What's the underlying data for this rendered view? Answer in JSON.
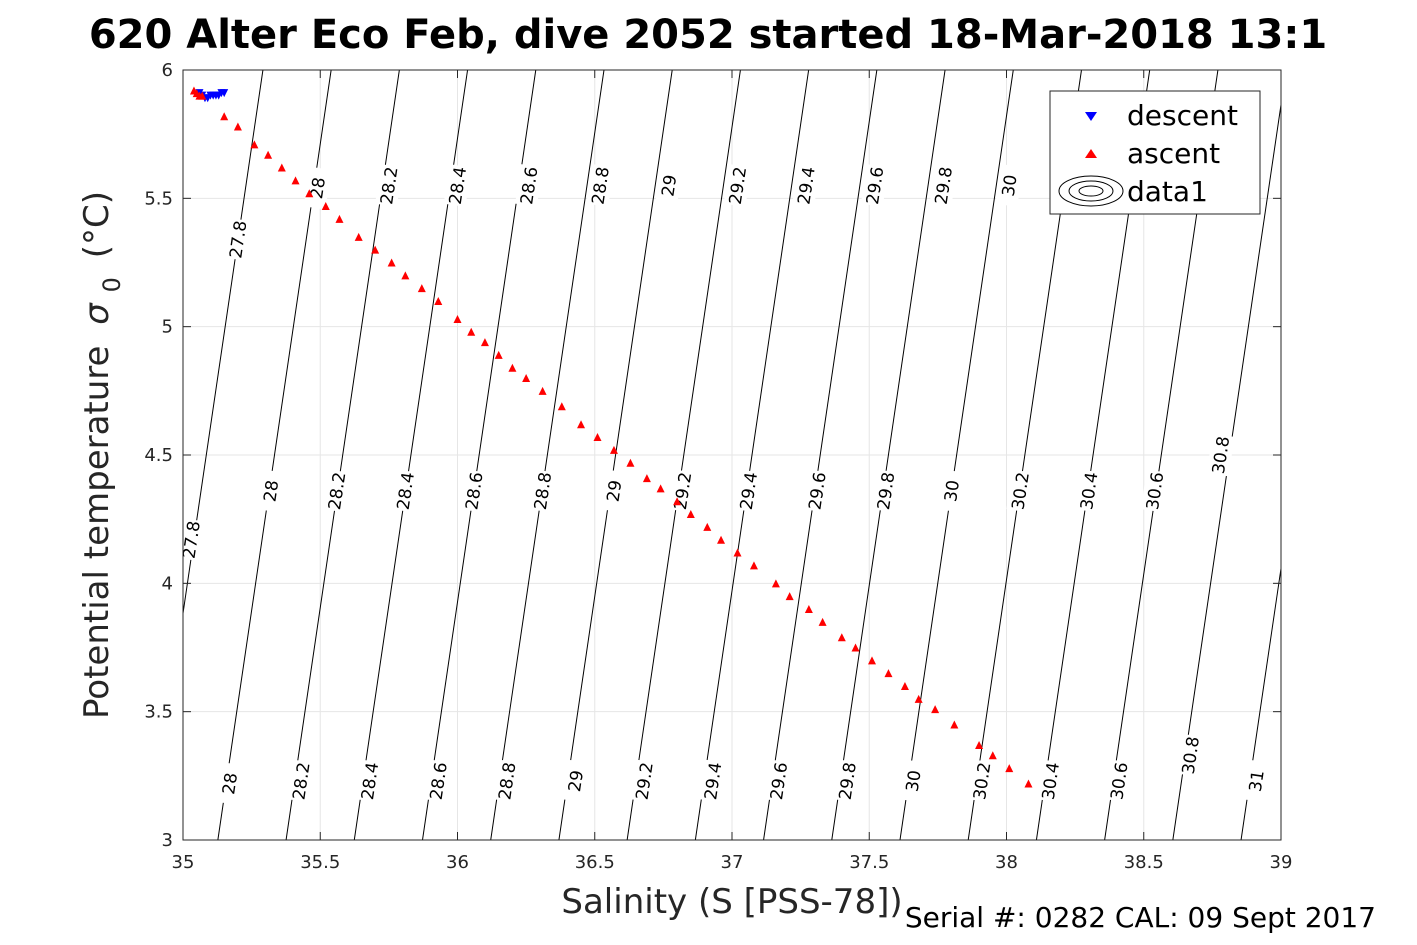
{
  "title": "620 Alter Eco Feb, dive 2052 started 18-Mar-2018 13:1",
  "footer": "Serial #: 0282  CAL: 09 Sept 2017",
  "chart_data": {
    "type": "scatter",
    "xlabel": "Salinity (S [PSS-78])",
    "ylabel": "Potential temperature",
    "ylabel_symbol": "σ",
    "ylabel_subscript": "0",
    "ylabel_unit": "(°C)",
    "xlim": [
      35,
      39
    ],
    "ylim": [
      3,
      6
    ],
    "xticks": [
      35,
      35.5,
      36,
      36.5,
      37,
      37.5,
      38,
      38.5,
      39
    ],
    "yticks": [
      3,
      3.5,
      4,
      4.5,
      5,
      5.5,
      6
    ],
    "xtick_labels": [
      "35",
      "35.5",
      "36",
      "36.5",
      "37",
      "37.5",
      "38",
      "38.5",
      "39"
    ],
    "ytick_labels": [
      "3",
      "3.5",
      "4",
      "4.5",
      "5",
      "5.5",
      "6"
    ],
    "grid": true,
    "legend": {
      "placement": "top-right",
      "entries": [
        "descent",
        "ascent",
        "data1"
      ]
    },
    "series": [
      {
        "name": "descent",
        "marker": "triangle-down",
        "color": "#0000ff",
        "points": [
          [
            35.06,
            5.91
          ],
          [
            35.07,
            5.9
          ],
          [
            35.08,
            5.89
          ],
          [
            35.09,
            5.89
          ],
          [
            35.1,
            5.9
          ],
          [
            35.11,
            5.9
          ],
          [
            35.12,
            5.9
          ],
          [
            35.13,
            5.9
          ],
          [
            35.14,
            5.91
          ],
          [
            35.15,
            5.91
          ]
        ]
      },
      {
        "name": "ascent",
        "marker": "triangle-up",
        "color": "#ff0000",
        "points": [
          [
            35.04,
            5.92
          ],
          [
            35.05,
            5.91
          ],
          [
            35.06,
            5.9
          ],
          [
            35.07,
            5.9
          ],
          [
            35.15,
            5.82
          ],
          [
            35.2,
            5.78
          ],
          [
            35.26,
            5.71
          ],
          [
            35.31,
            5.67
          ],
          [
            35.36,
            5.62
          ],
          [
            35.41,
            5.57
          ],
          [
            35.46,
            5.52
          ],
          [
            35.52,
            5.47
          ],
          [
            35.57,
            5.42
          ],
          [
            35.64,
            5.35
          ],
          [
            35.7,
            5.3
          ],
          [
            35.76,
            5.25
          ],
          [
            35.81,
            5.2
          ],
          [
            35.87,
            5.15
          ],
          [
            35.93,
            5.1
          ],
          [
            36.0,
            5.03
          ],
          [
            36.05,
            4.98
          ],
          [
            36.1,
            4.94
          ],
          [
            36.15,
            4.89
          ],
          [
            36.2,
            4.84
          ],
          [
            36.25,
            4.8
          ],
          [
            36.31,
            4.75
          ],
          [
            36.38,
            4.69
          ],
          [
            36.45,
            4.62
          ],
          [
            36.51,
            4.57
          ],
          [
            36.57,
            4.52
          ],
          [
            36.63,
            4.47
          ],
          [
            36.69,
            4.41
          ],
          [
            36.74,
            4.37
          ],
          [
            36.8,
            4.32
          ],
          [
            36.85,
            4.27
          ],
          [
            36.91,
            4.22
          ],
          [
            36.96,
            4.17
          ],
          [
            37.02,
            4.12
          ],
          [
            37.08,
            4.07
          ],
          [
            37.16,
            4.0
          ],
          [
            37.21,
            3.95
          ],
          [
            37.28,
            3.9
          ],
          [
            37.33,
            3.85
          ],
          [
            37.4,
            3.79
          ],
          [
            37.45,
            3.75
          ],
          [
            37.51,
            3.7
          ],
          [
            37.57,
            3.65
          ],
          [
            37.63,
            3.6
          ],
          [
            37.68,
            3.55
          ],
          [
            37.74,
            3.51
          ],
          [
            37.81,
            3.45
          ],
          [
            37.9,
            3.37
          ],
          [
            37.95,
            3.33
          ],
          [
            38.01,
            3.28
          ],
          [
            38.08,
            3.22
          ]
        ]
      }
    ],
    "contours": {
      "name": "data1",
      "color": "#000000",
      "levels": [
        27.8,
        28,
        28.2,
        28.4,
        28.6,
        28.8,
        29,
        29.2,
        29.4,
        29.6,
        29.8,
        30,
        30.2,
        30.4,
        30.6,
        30.8,
        31
      ],
      "labels": [
        {
          "level": "27.8",
          "x": 35.2,
          "y": 5.34
        },
        {
          "level": "28",
          "x": 35.49,
          "y": 5.54
        },
        {
          "level": "28.2",
          "x": 35.75,
          "y": 5.55
        },
        {
          "level": "28.4",
          "x": 36.0,
          "y": 5.55
        },
        {
          "level": "28.6",
          "x": 36.26,
          "y": 5.55
        },
        {
          "level": "28.8",
          "x": 36.52,
          "y": 5.55
        },
        {
          "level": "29",
          "x": 36.77,
          "y": 5.55
        },
        {
          "level": "29.2",
          "x": 37.02,
          "y": 5.55
        },
        {
          "level": "29.4",
          "x": 37.27,
          "y": 5.55
        },
        {
          "level": "29.6",
          "x": 37.52,
          "y": 5.55
        },
        {
          "level": "29.8",
          "x": 37.77,
          "y": 5.55
        },
        {
          "level": "30",
          "x": 38.01,
          "y": 5.55
        },
        {
          "level": "27.8",
          "x": 35.03,
          "y": 4.17
        },
        {
          "level": "28",
          "x": 35.32,
          "y": 4.36
        },
        {
          "level": "28.2",
          "x": 35.56,
          "y": 4.36
        },
        {
          "level": "28.4",
          "x": 35.81,
          "y": 4.36
        },
        {
          "level": "28.6",
          "x": 36.06,
          "y": 4.36
        },
        {
          "level": "28.8",
          "x": 36.31,
          "y": 4.36
        },
        {
          "level": "29",
          "x": 36.57,
          "y": 4.36
        },
        {
          "level": "29.2",
          "x": 36.82,
          "y": 4.36
        },
        {
          "level": "29.4",
          "x": 37.06,
          "y": 4.36
        },
        {
          "level": "29.6",
          "x": 37.31,
          "y": 4.36
        },
        {
          "level": "29.8",
          "x": 37.56,
          "y": 4.36
        },
        {
          "level": "30",
          "x": 37.8,
          "y": 4.36
        },
        {
          "level": "30.2",
          "x": 38.05,
          "y": 4.36
        },
        {
          "level": "30.4",
          "x": 38.3,
          "y": 4.36
        },
        {
          "level": "30.6",
          "x": 38.54,
          "y": 4.36
        },
        {
          "level": "30.8",
          "x": 38.78,
          "y": 4.5
        },
        {
          "level": "28",
          "x": 35.17,
          "y": 3.22
        },
        {
          "level": "28.2",
          "x": 35.43,
          "y": 3.23
        },
        {
          "level": "28.4",
          "x": 35.68,
          "y": 3.23
        },
        {
          "level": "28.6",
          "x": 35.93,
          "y": 3.23
        },
        {
          "level": "28.8",
          "x": 36.18,
          "y": 3.23
        },
        {
          "level": "29",
          "x": 36.43,
          "y": 3.23
        },
        {
          "level": "29.2",
          "x": 36.68,
          "y": 3.23
        },
        {
          "level": "29.4",
          "x": 36.93,
          "y": 3.23
        },
        {
          "level": "29.6",
          "x": 37.17,
          "y": 3.23
        },
        {
          "level": "29.8",
          "x": 37.42,
          "y": 3.23
        },
        {
          "level": "30",
          "x": 37.66,
          "y": 3.23
        },
        {
          "level": "30.2",
          "x": 37.91,
          "y": 3.23
        },
        {
          "level": "30.4",
          "x": 38.16,
          "y": 3.23
        },
        {
          "level": "30.6",
          "x": 38.41,
          "y": 3.23
        },
        {
          "level": "30.8",
          "x": 38.67,
          "y": 3.33
        },
        {
          "level": "31",
          "x": 38.91,
          "y": 3.23
        }
      ]
    }
  },
  "colors": {
    "descent": "#0000ff",
    "ascent": "#ff0000",
    "contour": "#000000",
    "grid": "#e6e6e6",
    "axis": "#262626"
  }
}
